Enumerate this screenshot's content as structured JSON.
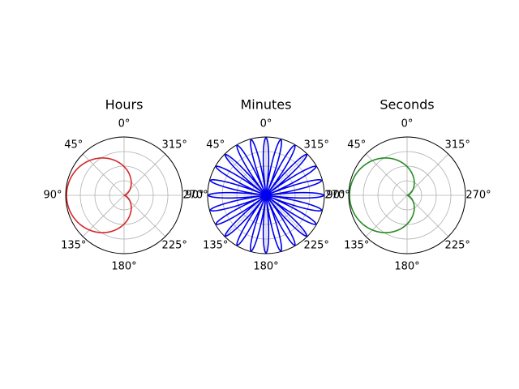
{
  "chart_data": [
    {
      "type": "line",
      "projection": "polar",
      "title": "Hours",
      "theta_zero_location": "N",
      "theta_direction": "counterclockwise",
      "theta_ticks": [
        "0°",
        "45°",
        "90°",
        "135°",
        "180°",
        "225°",
        "270°",
        "315°"
      ],
      "r_gridlines": 4,
      "radial_tick_labels": false,
      "grid": true,
      "series": [
        {
          "equation": "r = 1 + sin(theta)",
          "theta_range_deg": [
            0,
            360
          ],
          "color": "#d62728",
          "color_name": "red"
        }
      ]
    },
    {
      "type": "line",
      "projection": "polar",
      "title": "Minutes",
      "theta_zero_location": "N",
      "theta_direction": "counterclockwise",
      "theta_ticks": [
        "0°",
        "45°",
        "90°",
        "135°",
        "180°",
        "225°",
        "270°",
        "315°"
      ],
      "r_gridlines": 4,
      "radial_tick_labels": false,
      "grid": true,
      "series": [
        {
          "equation": "r = |cos(12 * theta)|",
          "petals": 24,
          "theta_range_deg": [
            0,
            360
          ],
          "color": "#0000ee",
          "color_name": "blue"
        }
      ]
    },
    {
      "type": "line",
      "projection": "polar",
      "title": "Seconds",
      "theta_zero_location": "N",
      "theta_direction": "counterclockwise",
      "theta_ticks": [
        "0°",
        "45°",
        "90°",
        "135°",
        "180°",
        "225°",
        "270°",
        "315°"
      ],
      "r_gridlines": 4,
      "radial_tick_labels": false,
      "grid": true,
      "series": [
        {
          "equation": "r = 1 + sin(theta)",
          "theta_range_deg": [
            0,
            360
          ],
          "color": "#228b22",
          "color_name": "green"
        }
      ]
    }
  ]
}
